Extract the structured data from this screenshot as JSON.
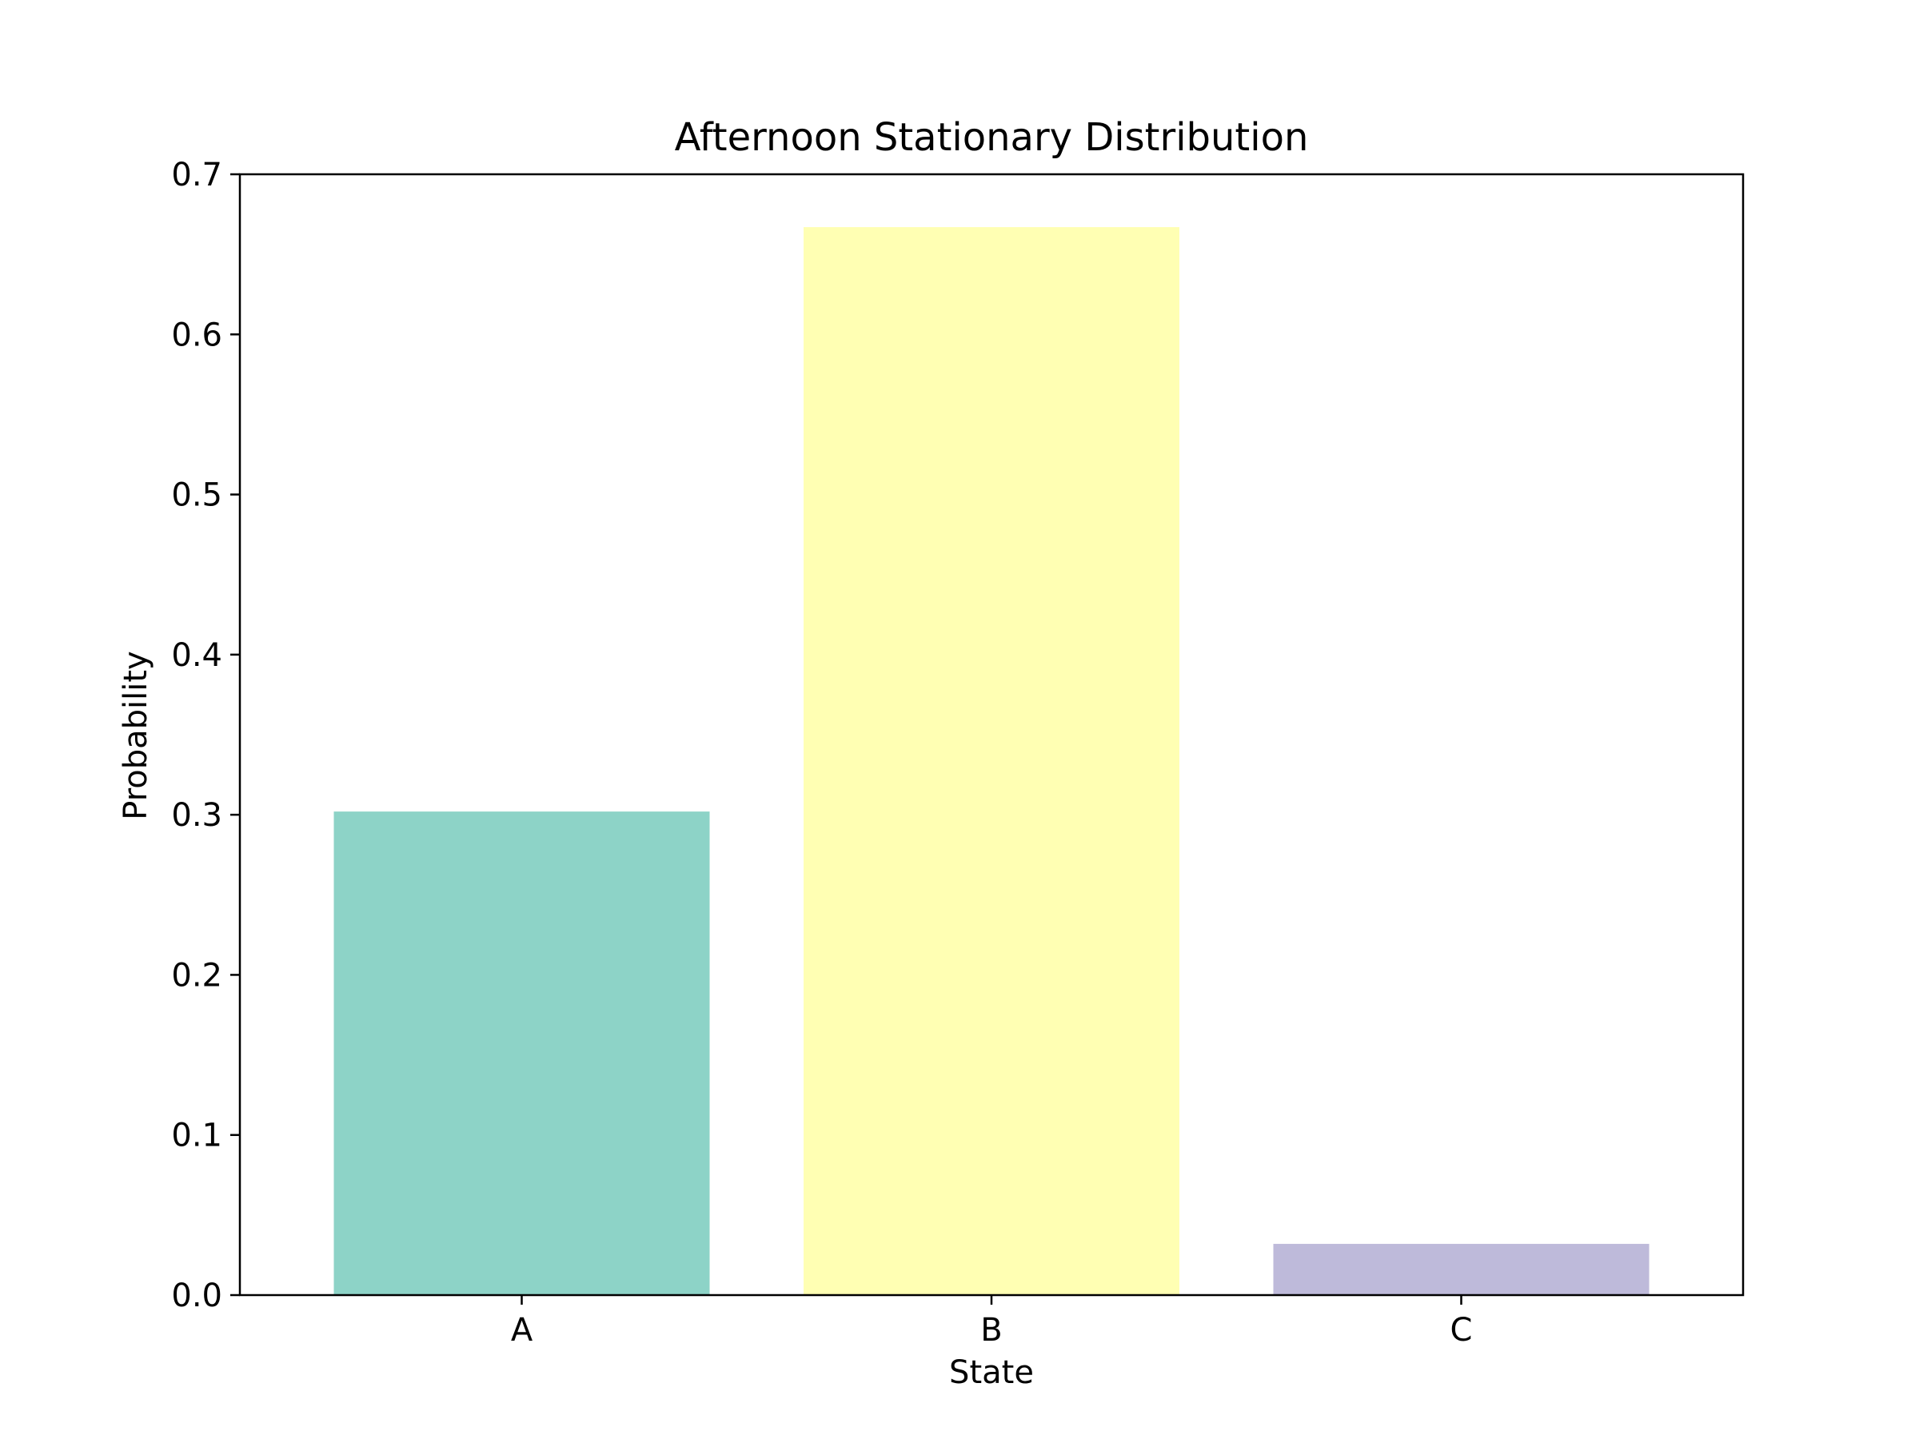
{
  "chart_data": {
    "type": "bar",
    "title": "Afternoon Stationary Distribution",
    "xlabel": "State",
    "ylabel": "Probability",
    "categories": [
      "A",
      "B",
      "C"
    ],
    "values": [
      0.302,
      0.667,
      0.032
    ],
    "colors": [
      "#8dd3c7",
      "#ffffb3",
      "#bebada"
    ],
    "ylim": [
      0,
      0.7
    ],
    "yticks": [
      0.0,
      0.1,
      0.2,
      0.3,
      0.4,
      0.5,
      0.6,
      0.7
    ],
    "ytick_labels": [
      "0.0",
      "0.1",
      "0.2",
      "0.3",
      "0.4",
      "0.5",
      "0.6",
      "0.7"
    ],
    "grid": false,
    "legend": "none"
  }
}
